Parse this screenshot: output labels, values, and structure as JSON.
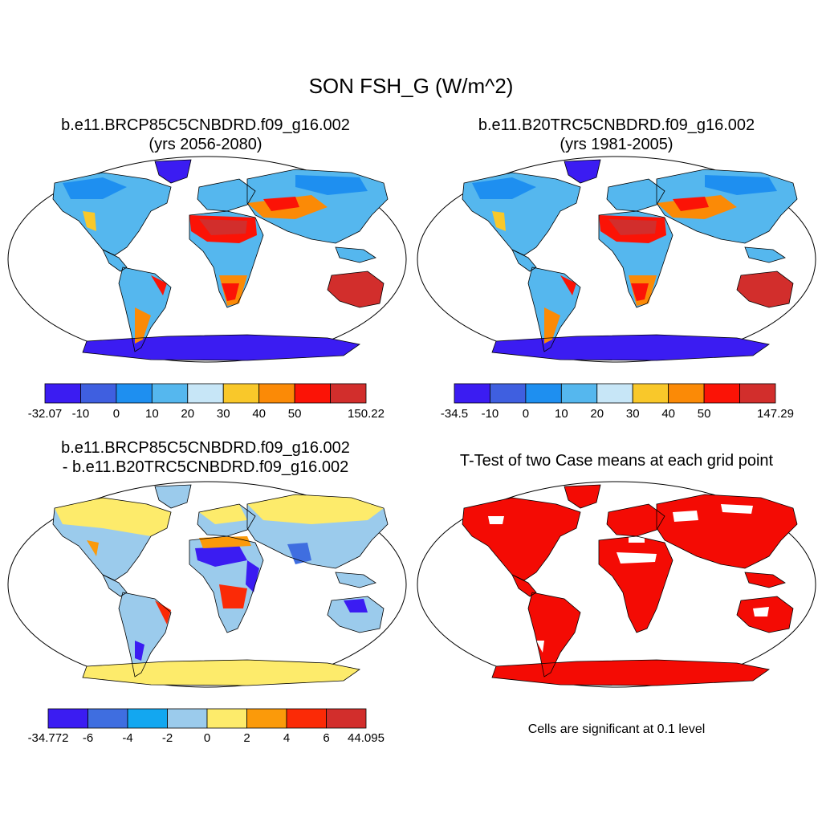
{
  "figure": {
    "title": "SON FSH_G (W/m^2)"
  },
  "panels": [
    {
      "title_line1": "b.e11.BRCP85C5CNBDRD.f09_g16.002",
      "title_line2": "(yrs 2056-2080)",
      "palette": [
        "#3b1cf2",
        "#3f5fe0",
        "#1e8ff0",
        "#55b7ee",
        "#c7e6f7",
        "#f9c82a",
        "#fb8a06",
        "#fb1306",
        "#d22e2c"
      ],
      "colorbar_labels": [
        "-32.07",
        "-10",
        "0",
        "10",
        "20",
        "30",
        "40",
        "50",
        "150.22"
      ],
      "fill_hint": "land heat flux map"
    },
    {
      "title_line1": "b.e11.B20TRC5CNBDRD.f09_g16.002",
      "title_line2": "(yrs 1981-2005)",
      "palette": [
        "#3b1cf2",
        "#3f5fe0",
        "#1e8ff0",
        "#55b7ee",
        "#c7e6f7",
        "#f9c82a",
        "#fb8a06",
        "#fb1306",
        "#d22e2c"
      ],
      "colorbar_labels": [
        "-34.5",
        "-10",
        "0",
        "10",
        "20",
        "30",
        "40",
        "50",
        "147.29"
      ]
    },
    {
      "title_line1": "b.e11.BRCP85C5CNBDRD.f09_g16.002",
      "title_line2": "- b.e11.B20TRC5CNBDRD.f09_g16.002",
      "palette": [
        "#3b1cf2",
        "#3f6ee0",
        "#13a7f0",
        "#9bcbec",
        "#fdeb6b",
        "#fb9a0a",
        "#fb2a06",
        "#d22e2c"
      ],
      "colorbar_labels": [
        "-34.772",
        "-6",
        "-4",
        "-2",
        "0",
        "2",
        "4",
        "6",
        "44.095"
      ]
    },
    {
      "title_line1": "T-Test of two Case means at each grid point",
      "note": "Cells are significant at 0.1 level",
      "sig_color": "#f40b04"
    }
  ]
}
